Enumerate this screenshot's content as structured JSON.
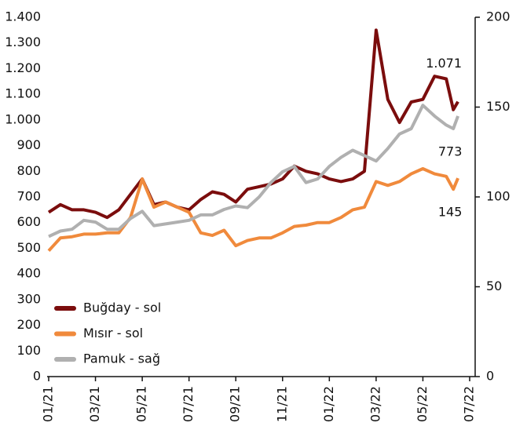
{
  "chart_data": {
    "type": "line",
    "x": [
      0,
      0.5,
      1,
      1.5,
      2,
      2.5,
      3,
      3.5,
      4,
      4.5,
      5,
      5.5,
      6,
      6.5,
      7,
      7.5,
      8,
      8.5,
      9,
      9.5,
      10,
      10.5,
      11,
      11.5,
      12,
      12.5,
      13,
      13.5,
      14,
      14.5,
      15,
      15.5,
      16,
      16.5,
      17,
      17.3,
      17.5
    ],
    "series": [
      {
        "name": "Buğday - sol",
        "color": "#7b0d0d",
        "values": [
          640,
          670,
          650,
          650,
          640,
          620,
          650,
          710,
          770,
          670,
          680,
          660,
          650,
          690,
          720,
          710,
          680,
          730,
          740,
          750,
          770,
          820,
          800,
          790,
          770,
          760,
          770,
          800,
          1350,
          1080,
          990,
          1070,
          1080,
          1170,
          1160,
          1040,
          1071
        ]
      },
      {
        "name": "Mısır - sol",
        "color": "#f08a3c",
        "values": [
          490,
          540,
          545,
          555,
          555,
          560,
          560,
          620,
          770,
          660,
          680,
          660,
          640,
          560,
          550,
          570,
          510,
          530,
          540,
          540,
          560,
          585,
          590,
          600,
          600,
          620,
          650,
          660,
          760,
          745,
          760,
          790,
          810,
          790,
          780,
          730,
          773
        ]
      },
      {
        "name": "Pamuk - sağ",
        "color": "#b0b0b0",
        "axis": "y2",
        "values": [
          78,
          81,
          82,
          87,
          86,
          82,
          82,
          88,
          92,
          84,
          85,
          86,
          87,
          90,
          90,
          93,
          95,
          94,
          100,
          108,
          114,
          117,
          108,
          110,
          117,
          122,
          126,
          123,
          120,
          127,
          135,
          138,
          151,
          145,
          140,
          138,
          145
        ]
      }
    ],
    "annotations": [
      "1.071",
      "145",
      "773"
    ],
    "xlim": [
      0,
      18
    ],
    "xticks": [
      {
        "value": 0,
        "label": "01/21"
      },
      {
        "value": 2,
        "label": "03/21"
      },
      {
        "value": 4,
        "label": "05/21"
      },
      {
        "value": 6,
        "label": "07/21"
      },
      {
        "value": 8,
        "label": "09/21"
      },
      {
        "value": 10,
        "label": "11/21"
      },
      {
        "value": 12,
        "label": "01/22"
      },
      {
        "value": 14,
        "label": "03/22"
      },
      {
        "value": 16,
        "label": "05/22"
      },
      {
        "value": 18,
        "label": "07/22"
      }
    ],
    "ylim": [
      0,
      1400
    ],
    "yticks": [
      0,
      100,
      200,
      300,
      400,
      500,
      600,
      700,
      800,
      900,
      {
        "value": 1000,
        "label": "1.000"
      },
      {
        "value": 1100,
        "label": "1.100"
      },
      {
        "value": 1200,
        "label": "1.200"
      },
      {
        "value": 1300,
        "label": "1.300"
      },
      {
        "value": 1400,
        "label": "1.400"
      }
    ],
    "y2lim": [
      0,
      200
    ],
    "y2ticks": [
      0,
      50,
      100,
      150,
      200
    ],
    "legend": "lower left"
  }
}
